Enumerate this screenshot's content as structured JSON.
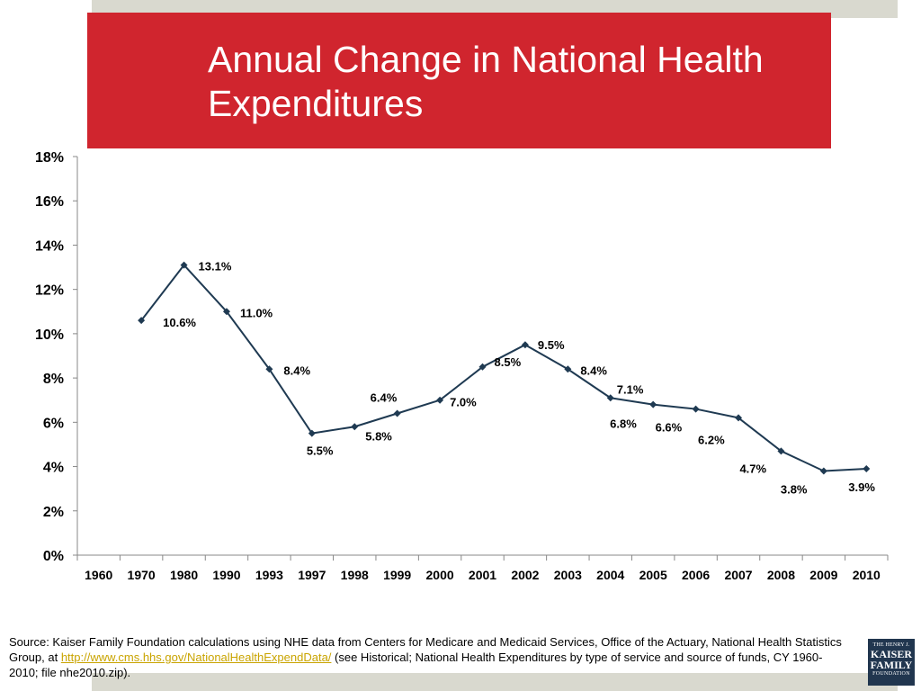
{
  "slide": {
    "title": "Annual Change in National Health Expenditures",
    "source_prefix": "Source: Kaiser Family Foundation calculations using NHE data from Centers for Medicare and Medicaid Services, Office of the Actuary, National Health Statistics Group, at ",
    "source_link": "http://www.cms.hhs.gov/NationalHealthExpendData/",
    "source_suffix": " (see Historical; National Health Expenditures by type of service and source of funds, CY 1960-2010; file nhe2010.zip).",
    "logo": {
      "line1": "THE HENRY J.",
      "line2": "KAISER",
      "line3": "FAMILY",
      "line4": "FOUNDATION"
    }
  },
  "colors": {
    "title_bg": "#d0252e",
    "line": "#1f3a52",
    "accent_strip": "#d9d9cf",
    "link": "#c9a400"
  },
  "chart_data": {
    "type": "line",
    "title": "",
    "xlabel": "",
    "ylabel": "",
    "categories": [
      "1960",
      "1970",
      "1980",
      "1990",
      "1993",
      "1997",
      "1998",
      "1999",
      "2000",
      "2001",
      "2002",
      "2003",
      "2004",
      "2005",
      "2006",
      "2007",
      "2008",
      "2009",
      "2010"
    ],
    "values": [
      null,
      10.6,
      13.1,
      11.0,
      8.4,
      5.5,
      5.8,
      6.4,
      7.0,
      8.5,
      9.5,
      8.4,
      7.1,
      6.8,
      6.6,
      6.2,
      4.7,
      3.8,
      3.9
    ],
    "labels": [
      null,
      "10.6%",
      "13.1%",
      "11.0%",
      "8.4%",
      "5.5%",
      "5.8%",
      "6.4%",
      "7.0%",
      "8.5%",
      "9.5%",
      "8.4%",
      "7.1%",
      "6.8%",
      "6.6%",
      "6.2%",
      "4.7%",
      "3.8%",
      "3.9%"
    ],
    "ylim": [
      0,
      18
    ],
    "yticks": [
      0,
      2,
      4,
      6,
      8,
      10,
      12,
      14,
      16,
      18
    ],
    "ytick_labels": [
      "0%",
      "2%",
      "4%",
      "6%",
      "8%",
      "10%",
      "12%",
      "14%",
      "16%",
      "18%"
    ],
    "grid": false,
    "legend": "none"
  }
}
